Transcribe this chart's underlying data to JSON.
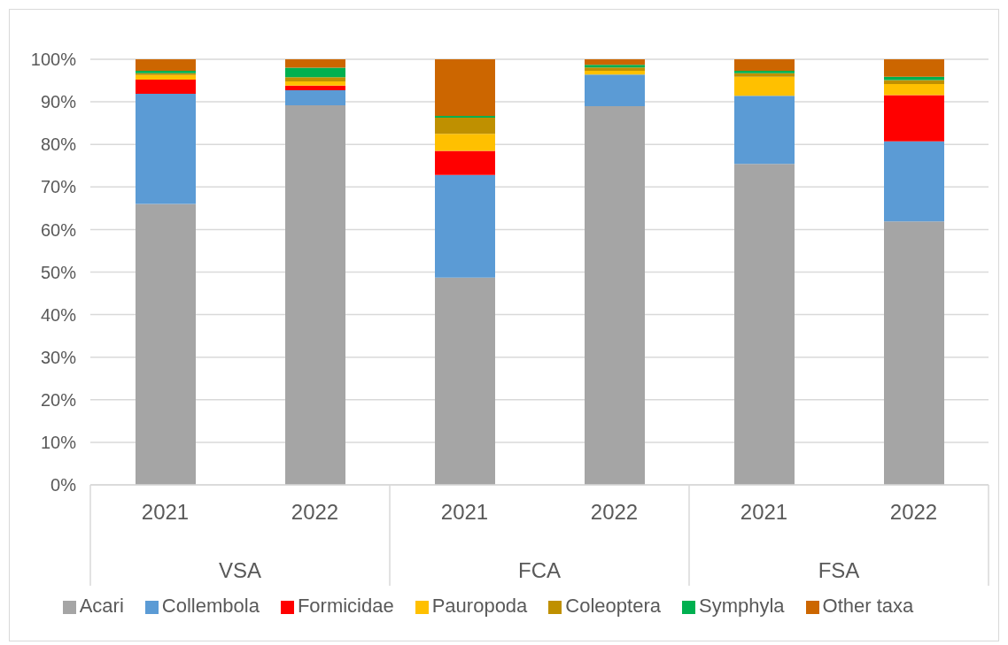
{
  "chart_data": {
    "type": "bar",
    "stacked": true,
    "categories": [
      "2021",
      "2022",
      "2021",
      "2022",
      "2021",
      "2022"
    ],
    "annotations": [
      "VSA",
      "FCA",
      "FSA"
    ],
    "series": [
      {
        "name": "Acari",
        "color": "#a5a5a5",
        "values": [
          66.0,
          89.2,
          48.7,
          89.0,
          75.4,
          61.9
        ]
      },
      {
        "name": "Collembola",
        "color": "#5b9bd5",
        "values": [
          25.9,
          3.5,
          24.1,
          7.4,
          16.0,
          18.8
        ]
      },
      {
        "name": "Formicidae",
        "color": "#ff0000",
        "values": [
          3.3,
          1.1,
          5.7,
          0,
          0,
          10.9
        ]
      },
      {
        "name": "Pauropoda",
        "color": "#ffc000",
        "values": [
          1.1,
          1.0,
          4.0,
          0.9,
          4.5,
          2.6
        ]
      },
      {
        "name": "Coleoptera",
        "color": "#bf9000",
        "values": [
          0.4,
          1.0,
          3.8,
          0.8,
          0.8,
          0.9
        ]
      },
      {
        "name": "Symphyla",
        "color": "#00b050",
        "values": [
          0.6,
          2.2,
          0.4,
          0.6,
          0.6,
          0.8
        ]
      },
      {
        "name": "Other taxa",
        "color": "#cc6600",
        "values": [
          2.7,
          2.0,
          13.3,
          1.3,
          2.7,
          4.1
        ]
      }
    ],
    "ylim": [
      0,
      100
    ],
    "yticks": [
      {
        "value": 0,
        "label": "0%"
      },
      {
        "value": 10,
        "label": "10%"
      },
      {
        "value": 20,
        "label": "20%"
      },
      {
        "value": 30,
        "label": "30%"
      },
      {
        "value": 40,
        "label": "40%"
      },
      {
        "value": 50,
        "label": "50%"
      },
      {
        "value": 60,
        "label": "60%"
      },
      {
        "value": 70,
        "label": "70%"
      },
      {
        "value": 80,
        "label": "80%"
      },
      {
        "value": 90,
        "label": "90%"
      },
      {
        "value": 100,
        "label": "100%"
      }
    ],
    "grid": "y",
    "legend": "bottom"
  }
}
